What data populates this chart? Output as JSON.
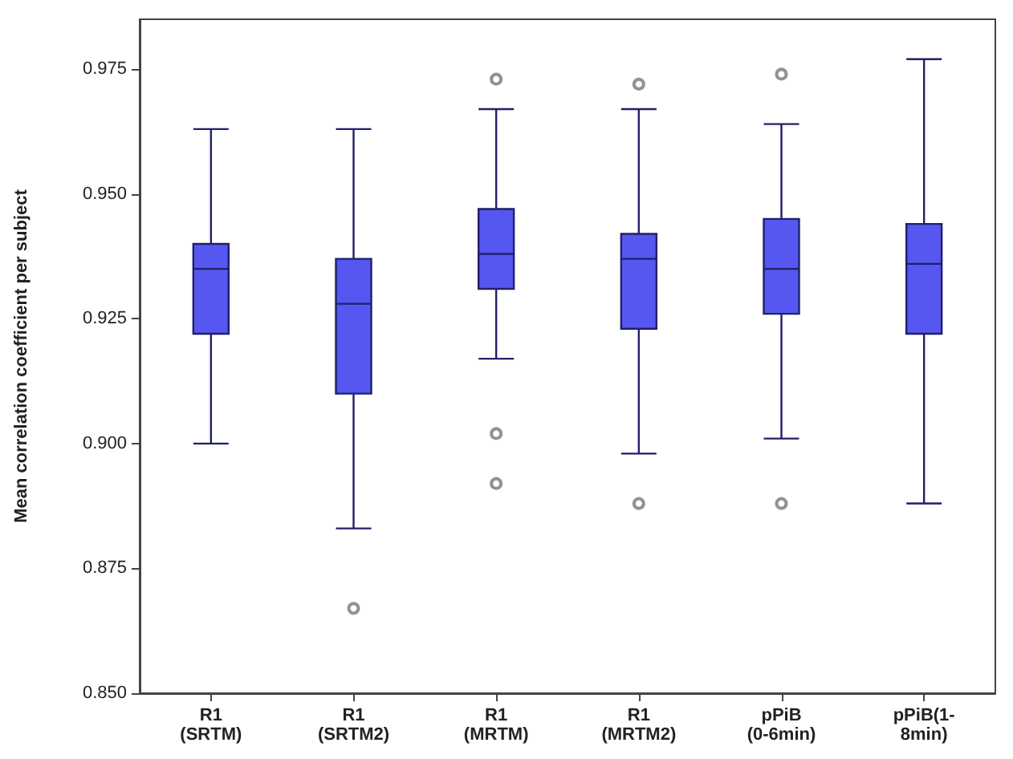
{
  "chart_data": {
    "type": "box",
    "ylabel": "Mean correlation coefficient per subject",
    "categories": [
      "R1\n(SRTM)",
      "R1\n(SRTM2)",
      "R1\n(MRTM)",
      "R1\n(MRTM2)",
      "pPiB\n(0-6min)",
      "pPiB(1-\n8min)"
    ],
    "boxes": [
      {
        "low": 0.9,
        "q1": 0.922,
        "median": 0.935,
        "q3": 0.94,
        "high": 0.963
      },
      {
        "low": 0.883,
        "q1": 0.91,
        "median": 0.928,
        "q3": 0.937,
        "high": 0.963,
        "outliers": [
          0.867
        ]
      },
      {
        "low": 0.917,
        "q1": 0.931,
        "median": 0.938,
        "q3": 0.947,
        "high": 0.967,
        "outliers": [
          0.973,
          0.902,
          0.892
        ]
      },
      {
        "low": 0.898,
        "q1": 0.923,
        "median": 0.937,
        "q3": 0.942,
        "high": 0.967,
        "outliers": [
          0.972,
          0.888
        ]
      },
      {
        "low": 0.901,
        "q1": 0.926,
        "median": 0.935,
        "q3": 0.945,
        "high": 0.964,
        "outliers": [
          0.974,
          0.888
        ]
      },
      {
        "low": 0.888,
        "q1": 0.922,
        "median": 0.936,
        "q3": 0.944,
        "high": 0.977
      }
    ],
    "color": "#5656f0",
    "ylim": [
      0.85,
      0.985
    ],
    "yticks": [
      {
        "value": 0.85,
        "label": "0.850"
      },
      {
        "value": 0.875,
        "label": "0.875"
      },
      {
        "value": 0.9,
        "label": "0.900"
      },
      {
        "value": 0.925,
        "label": "0.925"
      },
      {
        "value": 0.95,
        "label": "0.950"
      },
      {
        "value": 0.975,
        "label": "0.975"
      }
    ],
    "grid": false
  }
}
